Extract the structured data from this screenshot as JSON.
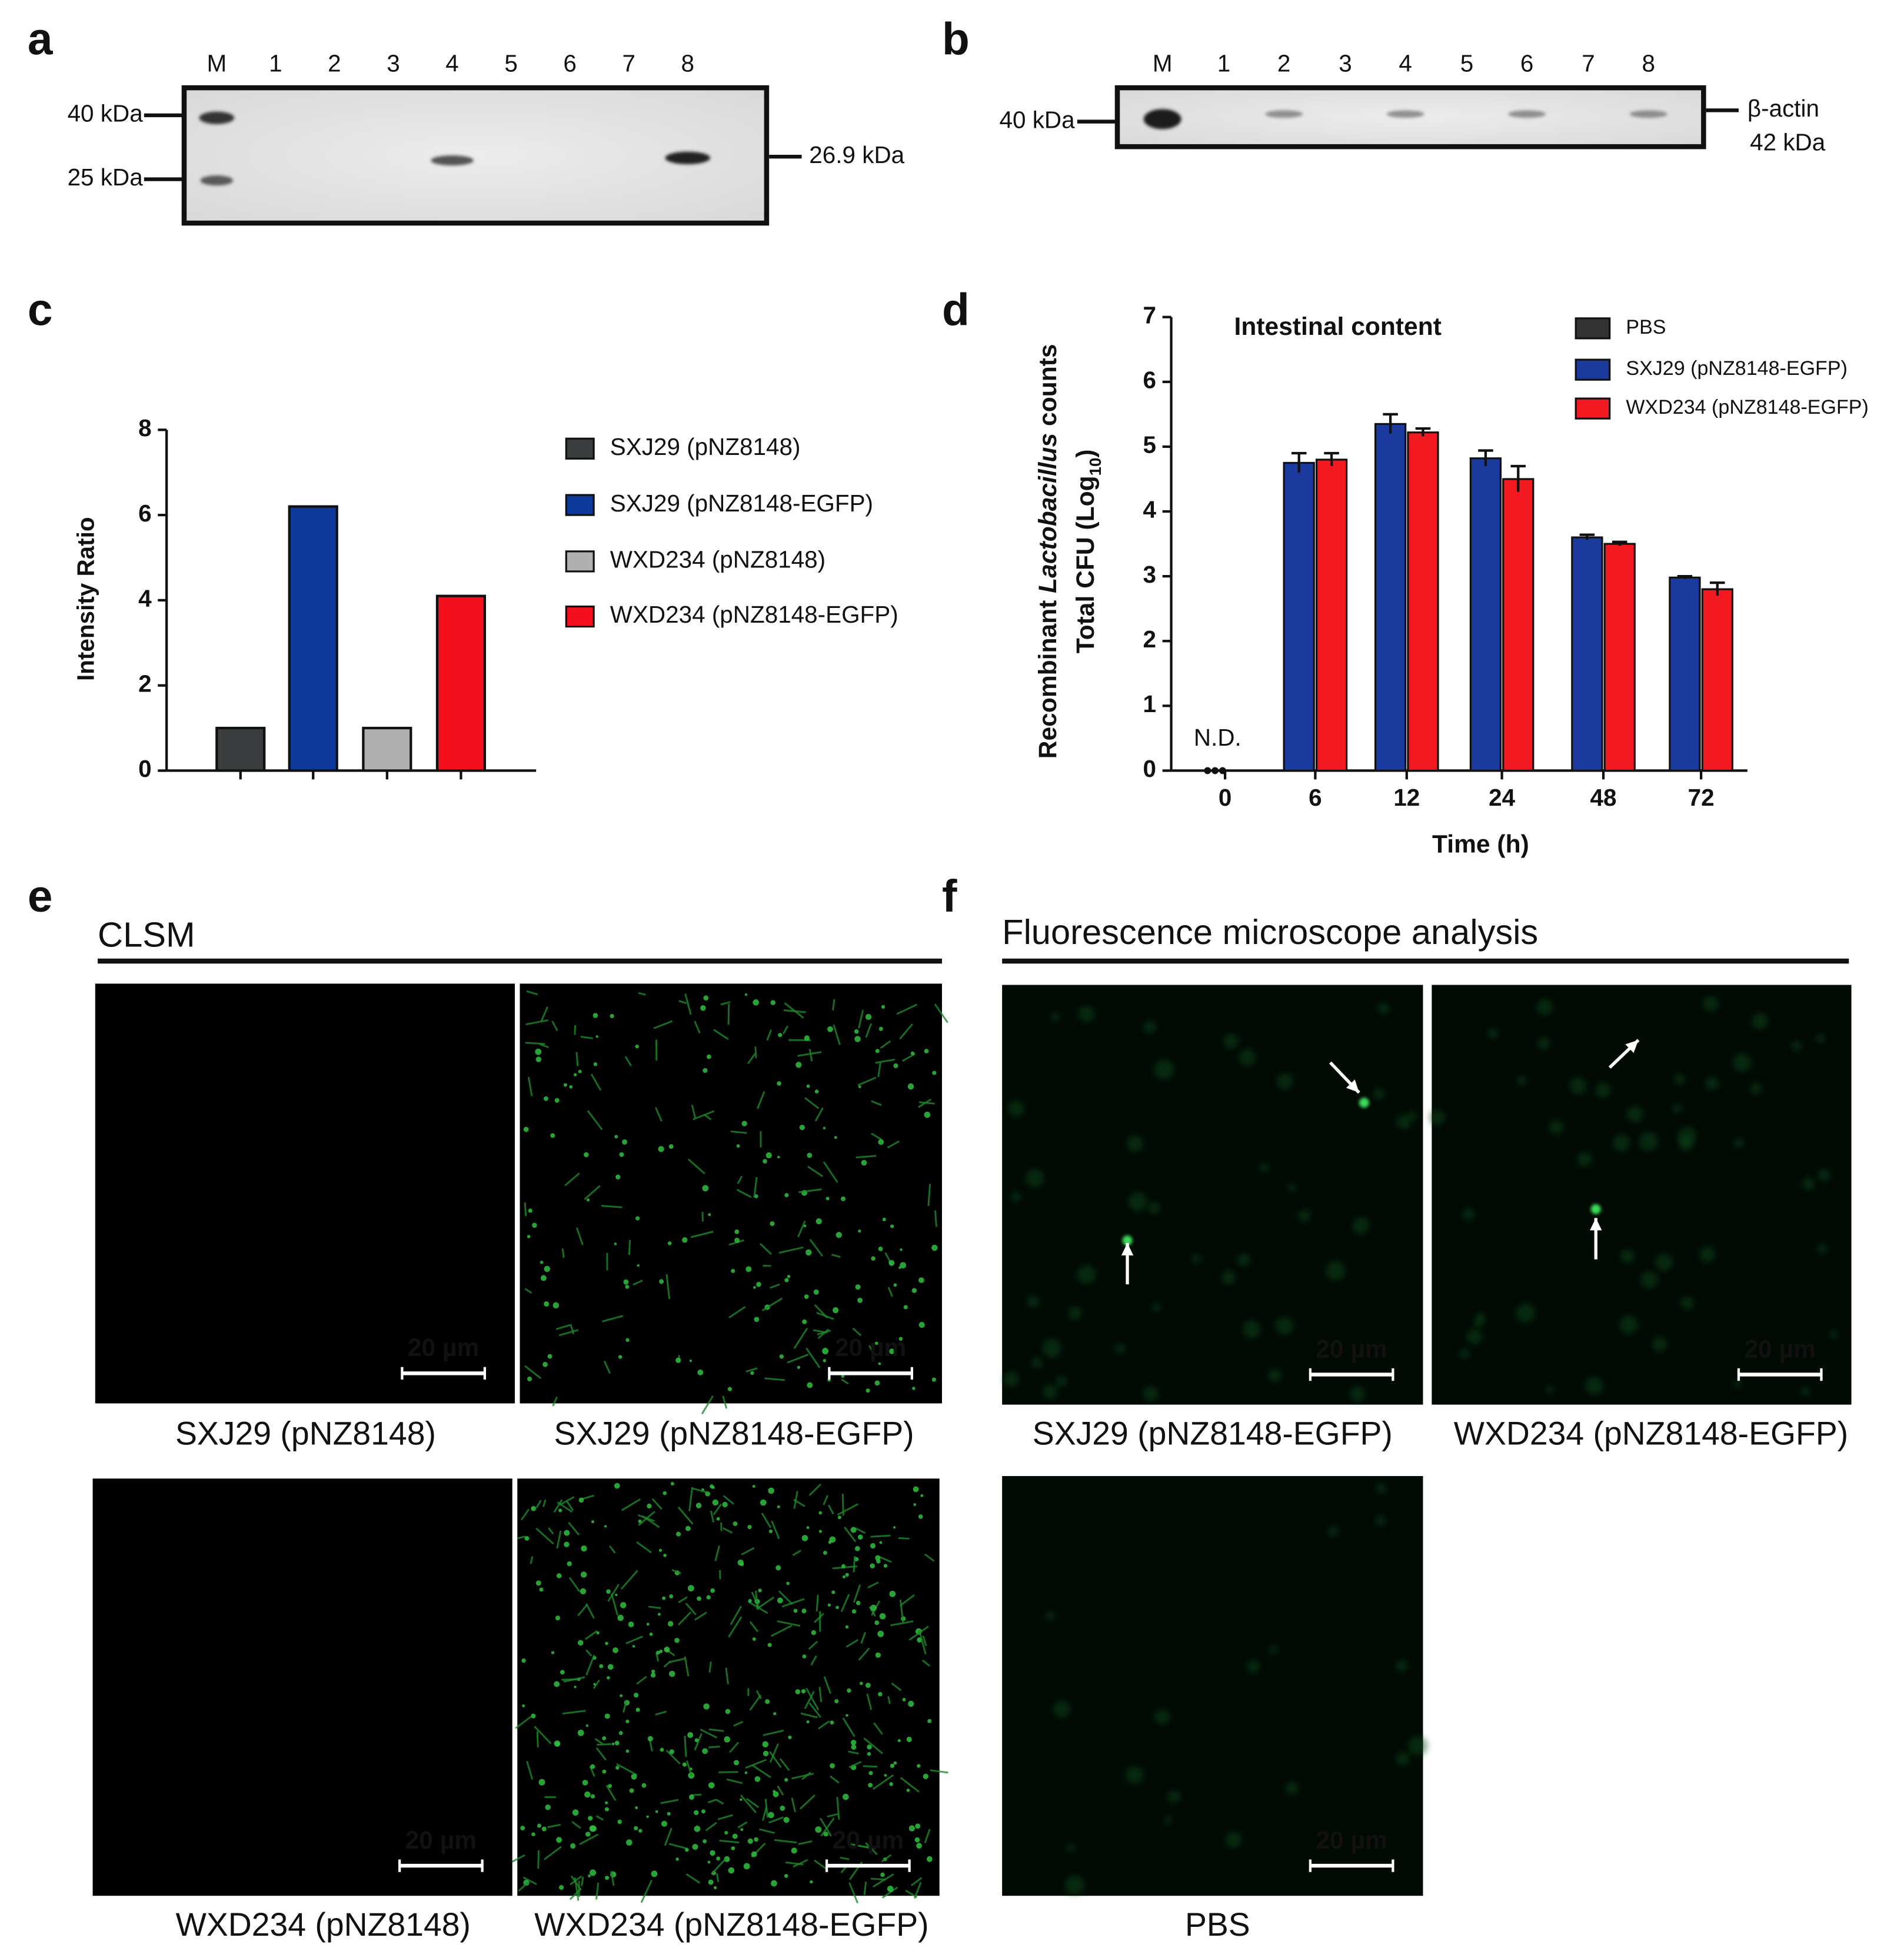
{
  "panel_a": {
    "label": "a",
    "lanes": [
      "M",
      "1",
      "2",
      "3",
      "4",
      "5",
      "6",
      "7",
      "8"
    ],
    "markers": [
      "40 kDa",
      "25 kDa"
    ],
    "band_label": "26.9 kDa"
  },
  "panel_b": {
    "label": "b",
    "lanes": [
      "M",
      "1",
      "2",
      "3",
      "4",
      "5",
      "6",
      "7",
      "8"
    ],
    "marker": "40 kDa",
    "protein": "β-actin",
    "size": "42 kDa"
  },
  "chart_data": [
    {
      "type": "bar",
      "panel_label": "c",
      "ylabel": "Intensity Ratio",
      "ylim": [
        0,
        8
      ],
      "yticks": [
        0,
        2,
        4,
        6,
        8
      ],
      "series": [
        {
          "name": "SXJ29 (pNZ8148)",
          "color": "#3a3d3d",
          "values": [
            1
          ]
        },
        {
          "name": "SXJ29 (pNZ8148-EGFP)",
          "color": "#0d3a9a",
          "values": [
            6.2
          ]
        },
        {
          "name": "WXD234 (pNZ8148)",
          "color": "#b0b0b0",
          "values": [
            1
          ]
        },
        {
          "name": "WXD234 (pNZ8148-EGFP)",
          "color": "#f3101c",
          "values": [
            4.1
          ]
        }
      ]
    },
    {
      "type": "grouped-bar",
      "panel_label": "d",
      "annotation": "Intestinal content",
      "nd_label": "N.D.",
      "ylabel": [
        [
          "Recombinant ",
          "Lactobacillus",
          " counts"
        ],
        [
          "Total CFU (Log",
          "10",
          ")"
        ]
      ],
      "xlabel": "Time (h)",
      "categories": [
        "0",
        "6",
        "12",
        "24",
        "48",
        "72"
      ],
      "ylim": [
        0,
        7
      ],
      "yticks": [
        0,
        1,
        2,
        3,
        4,
        5,
        6,
        7
      ],
      "series": [
        {
          "name": "PBS",
          "color": "#333333",
          "values": [
            0,
            null,
            null,
            null,
            null,
            null
          ],
          "errors": [
            null,
            null,
            null,
            null,
            null,
            null
          ]
        },
        {
          "name": "SXJ29 (pNZ8148-EGFP)",
          "color": "#1a3a9e",
          "values": [
            0,
            4.75,
            5.35,
            4.82,
            3.6,
            2.98
          ],
          "errors": [
            null,
            0.15,
            0.15,
            0.12,
            0.04,
            0.02
          ]
        },
        {
          "name": "WXD234 (pNZ8148-EGFP)",
          "color": "#f21a20",
          "values": [
            0,
            4.8,
            5.22,
            4.5,
            3.5,
            2.8
          ],
          "errors": [
            null,
            0.1,
            0.06,
            0.2,
            0.03,
            0.1
          ]
        }
      ]
    }
  ],
  "panel_e": {
    "label": "e",
    "title": "CLSM",
    "images": [
      {
        "caption": "SXJ29 (pNZ8148)",
        "scale": "20 µm"
      },
      {
        "caption": "SXJ29 (pNZ8148-EGFP)",
        "scale": "20 µm"
      },
      {
        "caption": "WXD234 (pNZ8148)",
        "scale": "20 µm"
      },
      {
        "caption": "WXD234 (pNZ8148-EGFP)",
        "scale": "20 µm"
      }
    ]
  },
  "panel_f": {
    "label": "f",
    "title": "Fluorescence microscope analysis",
    "images": [
      {
        "caption": "SXJ29 (pNZ8148-EGFP)",
        "scale": "20 µm"
      },
      {
        "caption": "WXD234 (pNZ8148-EGFP)",
        "scale": "20 µm"
      },
      {
        "caption": "PBS",
        "scale": "20 µm"
      }
    ]
  }
}
